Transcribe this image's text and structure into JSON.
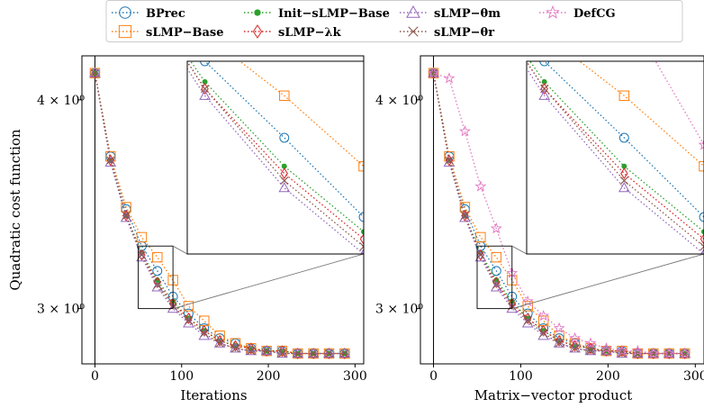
{
  "colors": {
    "BPrec": "#1f77b4",
    "sLMP-Base": "#ff7f0e",
    "Init-sLMP-Base": "#2ca02c",
    "sLMP-lambda": "#d62728",
    "sLMP-theta_m": "#9467bd",
    "sLMP-theta_r": "#8c564b",
    "DefCG": "#e377c2"
  },
  "legend": {
    "location": "top-center",
    "entries": [
      "BPrec",
      "sLMP−Base",
      "Init−sLMP−Base",
      "sLMP−λk",
      "sLMP−θm",
      "sLMP−θr",
      "DefCG"
    ]
  },
  "chart_data": [
    {
      "type": "line",
      "xlabel": "Iterations",
      "ylabel": "Quadratic cost function",
      "yscale": "log",
      "xlim": [
        -15,
        310
      ],
      "ylim": [
        2.78,
        4.25
      ],
      "xticks": [
        0,
        100,
        200,
        300
      ],
      "yticks": [
        {
          "value": 3,
          "label": "3 × 10⁰"
        },
        {
          "value": 4,
          "label": "4 × 10⁰"
        }
      ],
      "inset": {
        "xlim": [
          50,
          90
        ],
        "ylim": [
          3.0,
          3.27
        ]
      },
      "series": [
        {
          "name": "BPrec",
          "x": [
            0,
            18,
            36,
            54,
            72,
            90,
            108,
            126,
            144,
            162,
            180,
            198,
            216,
            234,
            252,
            270,
            288
          ],
          "y": [
            4.15,
            3.7,
            3.44,
            3.27,
            3.16,
            3.05,
            2.98,
            2.92,
            2.88,
            2.86,
            2.84,
            2.83,
            2.83,
            2.82,
            2.82,
            2.82,
            2.82
          ]
        },
        {
          "name": "sLMP−Base",
          "x": [
            0,
            18,
            36,
            54,
            72,
            90,
            108,
            126,
            144,
            162,
            180,
            198,
            216,
            234,
            252,
            270,
            288
          ],
          "y": [
            4.15,
            3.7,
            3.45,
            3.31,
            3.22,
            3.12,
            3.01,
            2.95,
            2.89,
            2.86,
            2.84,
            2.83,
            2.83,
            2.82,
            2.82,
            2.82,
            2.82
          ]
        },
        {
          "name": "Init−sLMP−Base",
          "x": [
            0,
            18,
            36,
            54,
            72,
            90,
            108,
            126,
            144,
            162,
            180,
            198,
            216,
            234,
            252,
            270,
            288
          ],
          "y": [
            4.15,
            3.68,
            3.41,
            3.24,
            3.12,
            3.03,
            2.96,
            2.91,
            2.87,
            2.85,
            2.84,
            2.83,
            2.83,
            2.82,
            2.82,
            2.82,
            2.82
          ]
        },
        {
          "name": "sLMP−λk",
          "x": [
            0,
            18,
            36,
            54,
            72,
            90,
            108,
            126,
            144,
            162,
            180,
            198,
            216,
            234,
            252,
            270,
            288
          ],
          "y": [
            4.15,
            3.68,
            3.41,
            3.23,
            3.11,
            3.02,
            2.96,
            2.91,
            2.87,
            2.85,
            2.84,
            2.83,
            2.83,
            2.82,
            2.82,
            2.82,
            2.82
          ]
        },
        {
          "name": "sLMP−θm",
          "x": [
            0,
            18,
            36,
            54,
            72,
            90,
            108,
            126,
            144,
            162,
            180,
            198,
            216,
            234,
            252,
            270,
            288
          ],
          "y": [
            4.15,
            3.67,
            3.4,
            3.22,
            3.09,
            3.0,
            2.94,
            2.89,
            2.86,
            2.84,
            2.83,
            2.83,
            2.82,
            2.82,
            2.82,
            2.82,
            2.82
          ]
        },
        {
          "name": "sLMP−θr",
          "x": [
            0,
            18,
            36,
            54,
            72,
            90,
            108,
            126,
            144,
            162,
            180,
            198,
            216,
            234,
            252,
            270,
            288
          ],
          "y": [
            4.15,
            3.68,
            3.41,
            3.23,
            3.1,
            3.01,
            2.95,
            2.9,
            2.86,
            2.84,
            2.83,
            2.83,
            2.82,
            2.82,
            2.82,
            2.82,
            2.82
          ]
        }
      ]
    },
    {
      "type": "line",
      "xlabel": "Matrix−vector product",
      "ylabel": "",
      "yscale": "log",
      "xlim": [
        -15,
        310
      ],
      "ylim": [
        2.78,
        4.25
      ],
      "xticks": [
        0,
        100,
        200,
        300
      ],
      "yticks": [
        {
          "value": 3,
          "label": "3 × 10⁰"
        },
        {
          "value": 4,
          "label": "4 × 10⁰"
        }
      ],
      "inset": {
        "xlim": [
          50,
          90
        ],
        "ylim": [
          3.0,
          3.27
        ]
      },
      "series": [
        {
          "name": "BPrec",
          "x": [
            0,
            18,
            36,
            54,
            72,
            90,
            108,
            126,
            144,
            162,
            180,
            198,
            216,
            234,
            252,
            270,
            288
          ],
          "y": [
            4.15,
            3.7,
            3.44,
            3.27,
            3.16,
            3.05,
            2.98,
            2.92,
            2.88,
            2.86,
            2.84,
            2.83,
            2.83,
            2.82,
            2.82,
            2.82,
            2.82
          ]
        },
        {
          "name": "sLMP−Base",
          "x": [
            0,
            18,
            36,
            54,
            72,
            90,
            108,
            126,
            144,
            162,
            180,
            198,
            216,
            234,
            252,
            270,
            288
          ],
          "y": [
            4.15,
            3.7,
            3.45,
            3.31,
            3.22,
            3.12,
            3.01,
            2.95,
            2.89,
            2.86,
            2.84,
            2.83,
            2.83,
            2.82,
            2.82,
            2.82,
            2.82
          ]
        },
        {
          "name": "Init−sLMP−Base",
          "x": [
            0,
            18,
            36,
            54,
            72,
            90,
            108,
            126,
            144,
            162,
            180,
            198,
            216,
            234,
            252,
            270,
            288
          ],
          "y": [
            4.15,
            3.68,
            3.41,
            3.24,
            3.12,
            3.03,
            2.96,
            2.91,
            2.87,
            2.85,
            2.84,
            2.83,
            2.83,
            2.82,
            2.82,
            2.82,
            2.82
          ]
        },
        {
          "name": "sLMP−λk",
          "x": [
            0,
            18,
            36,
            54,
            72,
            90,
            108,
            126,
            144,
            162,
            180,
            198,
            216,
            234,
            252,
            270,
            288
          ],
          "y": [
            4.15,
            3.68,
            3.41,
            3.23,
            3.11,
            3.02,
            2.96,
            2.91,
            2.87,
            2.85,
            2.84,
            2.83,
            2.83,
            2.82,
            2.82,
            2.82,
            2.82
          ]
        },
        {
          "name": "sLMP−θm",
          "x": [
            0,
            18,
            36,
            54,
            72,
            90,
            108,
            126,
            144,
            162,
            180,
            198,
            216,
            234,
            252,
            270,
            288
          ],
          "y": [
            4.15,
            3.67,
            3.4,
            3.22,
            3.09,
            3.0,
            2.94,
            2.89,
            2.86,
            2.84,
            2.83,
            2.83,
            2.82,
            2.82,
            2.82,
            2.82,
            2.82
          ]
        },
        {
          "name": "sLMP−θr",
          "x": [
            0,
            18,
            36,
            54,
            72,
            90,
            108,
            126,
            144,
            162,
            180,
            198,
            216,
            234,
            252,
            270,
            288
          ],
          "y": [
            4.15,
            3.68,
            3.41,
            3.23,
            3.1,
            3.01,
            2.95,
            2.9,
            2.86,
            2.84,
            2.83,
            2.83,
            2.82,
            2.82,
            2.82,
            2.82,
            2.82
          ]
        },
        {
          "name": "DefCG",
          "x": [
            0,
            18,
            36,
            54,
            72,
            90,
            108,
            126,
            144,
            162,
            180,
            198,
            216,
            234,
            252,
            270,
            288
          ],
          "y": [
            4.15,
            4.12,
            3.83,
            3.55,
            3.35,
            3.15,
            3.03,
            2.97,
            2.92,
            2.88,
            2.86,
            2.84,
            2.83,
            2.83,
            2.82,
            2.82,
            2.82
          ]
        }
      ]
    }
  ]
}
